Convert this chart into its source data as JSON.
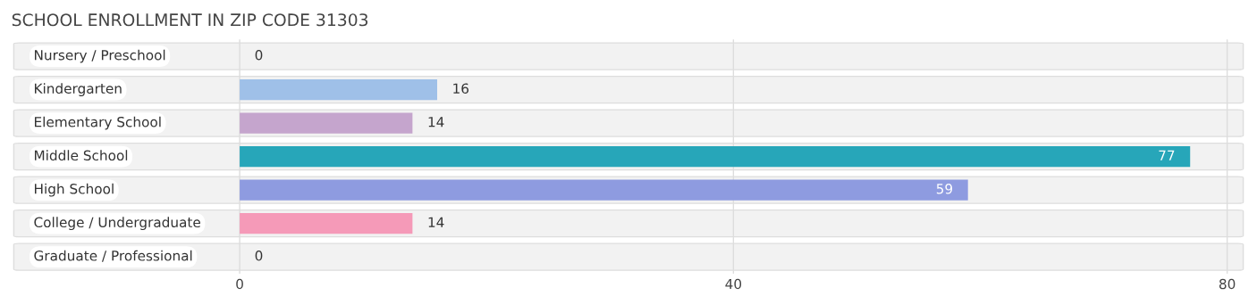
{
  "chart_data": {
    "type": "bar",
    "orientation": "horizontal",
    "title": "SCHOOL ENROLLMENT IN ZIP CODE 31303",
    "categories": [
      "Nursery / Preschool",
      "Kindergarten",
      "Elementary School",
      "Middle School",
      "High School",
      "College / Undergraduate",
      "Graduate / Professional"
    ],
    "values": [
      0,
      16,
      14,
      77,
      59,
      14,
      0
    ],
    "colors": [
      "#f4a9a8",
      "#9fc0e8",
      "#c5a5cd",
      "#27a6b9",
      "#8e9be0",
      "#f59ab8",
      "#f8c99c"
    ],
    "xlim": [
      -18.5,
      81.5
    ],
    "xticks": [
      0,
      40,
      80
    ],
    "grid": "x",
    "data_labels": true
  }
}
